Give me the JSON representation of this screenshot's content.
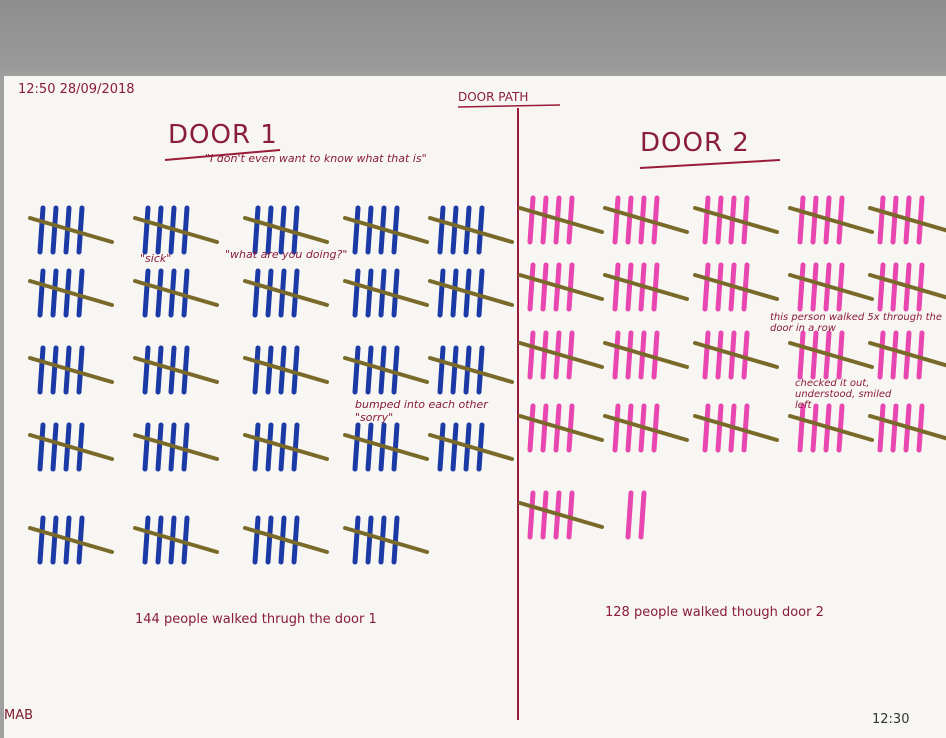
{
  "header": {
    "timestamp": "12:50 28/09/2018",
    "title": "DOOR PATH"
  },
  "door1": {
    "heading": "DOOR 1",
    "notes": [
      "\"I don't even want to know what that is\"",
      "\"sick\"",
      "\"what are you doing?\"",
      "bumped into each other \"sorry\""
    ],
    "summary": "144 people walked thrugh the door 1"
  },
  "door2": {
    "heading": "DOOR 2",
    "notes": [
      "this person walked 5x through the door in a row",
      "checked it out, understood, smiled left"
    ],
    "summary": "128 people walked though door 2"
  },
  "footer": {
    "initials": "MAB",
    "end_time": "12:30"
  }
}
